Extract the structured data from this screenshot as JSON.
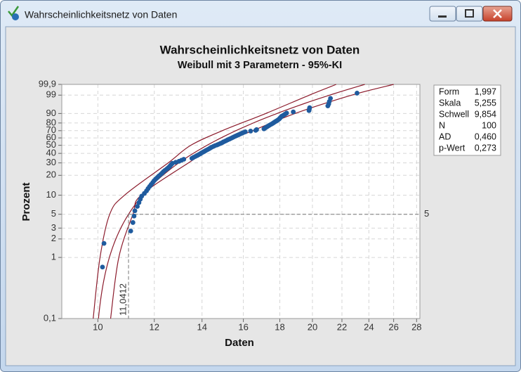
{
  "window": {
    "title": "Wahrscheinlichkeitsnetz von Daten"
  },
  "chart_data": {
    "type": "probability",
    "title": "Wahrscheinlichkeitsnetz von Daten",
    "subtitle": "Weibull mit 3 Parametern - 95%-KI",
    "xlabel": "Daten",
    "ylabel": "Prozent",
    "xscale": "log",
    "yscale": "weibull",
    "grid": true,
    "color": "#1f5b9e",
    "line_color": "#8b1a2b",
    "xlim": [
      8.9,
      28.3
    ],
    "xticks": [
      10,
      12,
      14,
      16,
      18,
      20,
      22,
      24,
      26,
      28
    ],
    "ylim": [
      0.1,
      99.9
    ],
    "yticks": [
      {
        "value": 0.1,
        "label": "0,1"
      },
      1,
      2,
      3,
      5,
      10,
      20,
      30,
      40,
      50,
      60,
      70,
      80,
      90,
      99,
      {
        "value": 99.9,
        "label": "99,9"
      }
    ],
    "values": [
      10.15,
      10.2,
      11.12,
      11.2,
      11.24,
      11.27,
      11.36,
      11.42,
      11.47,
      11.52,
      11.62,
      11.7,
      11.76,
      11.82,
      11.88,
      11.94,
      11.99,
      12.05,
      12.12,
      12.18,
      12.25,
      12.31,
      12.36,
      12.42,
      12.49,
      12.55,
      12.6,
      12.64,
      12.68,
      12.72,
      12.86,
      13.0,
      13.1,
      13.2,
      13.55,
      13.62,
      13.7,
      13.78,
      13.85,
      13.92,
      13.98,
      14.05,
      14.12,
      14.18,
      14.25,
      14.32,
      14.38,
      14.44,
      14.52,
      14.6,
      14.7,
      14.78,
      14.86,
      14.94,
      15.0,
      15.08,
      15.15,
      15.22,
      15.3,
      15.38,
      15.45,
      15.52,
      15.6,
      15.68,
      15.76,
      15.84,
      15.92,
      16.0,
      16.1,
      16.38,
      16.65,
      16.7,
      17.1,
      17.15,
      17.22,
      17.28,
      17.35,
      17.42,
      17.5,
      17.58,
      17.65,
      17.72,
      17.8,
      17.88,
      17.95,
      18.0,
      18.05,
      18.1,
      18.2,
      18.3,
      18.4,
      18.8,
      19.78,
      19.8,
      19.82,
      21.02,
      21.08,
      21.12,
      21.2,
      23.1
    ],
    "ci_lower": {
      "percent": [
        0.1,
        1,
        5,
        10,
        30,
        50,
        70,
        90,
        99,
        99.9
      ],
      "x": [
        9.85,
        10.07,
        10.39,
        10.9,
        12.55,
        13.5,
        14.95,
        17.2,
        19.8,
        21.6
      ]
    },
    "ci_upper": {
      "percent": [
        0.1,
        1,
        5,
        10,
        30,
        50,
        70,
        90,
        99,
        99.9
      ],
      "x": [
        10.42,
        10.7,
        11.2,
        11.5,
        13.4,
        14.7,
        16.5,
        18.9,
        22.7,
        26.0
      ]
    },
    "reference": {
      "percent": 5,
      "x": {
        "value": 11.0412,
        "label": "11,0412"
      }
    },
    "stats": [
      {
        "label": "Form",
        "value": {
          "value": 1.997,
          "label": "1,997"
        }
      },
      {
        "label": "Skala",
        "value": {
          "value": 5.255,
          "label": "5,255"
        }
      },
      {
        "label": "Schwell",
        "value": {
          "value": 9.854,
          "label": "9,854"
        }
      },
      {
        "label": "N",
        "value": 100
      },
      {
        "label": "AD",
        "value": {
          "value": 0.46,
          "label": "0,460"
        }
      },
      {
        "label": "p-Wert",
        "value": {
          "value": 0.273,
          "label": "0,273"
        }
      }
    ]
  }
}
